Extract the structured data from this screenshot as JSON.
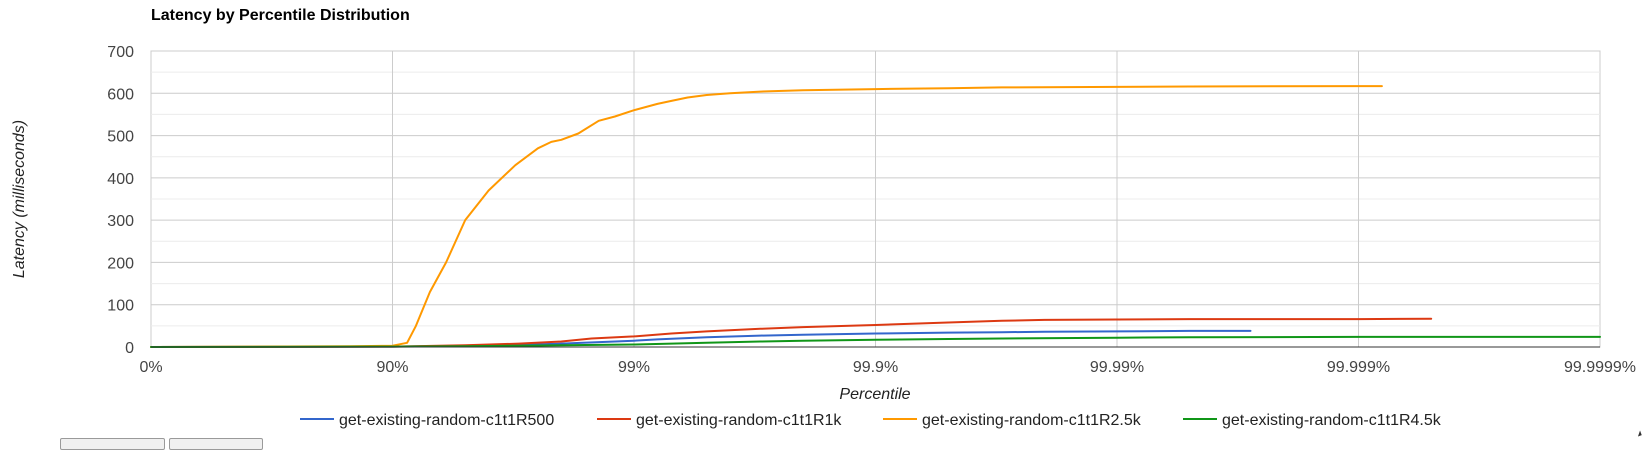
{
  "chart_data": {
    "type": "line",
    "title": "Latency by Percentile Distribution",
    "xlabel": "Percentile",
    "ylabel": "Latency (milliseconds)",
    "x_scale": "log-inverse-percentile",
    "x_ticks": [
      "0%",
      "90%",
      "99%",
      "99.9%",
      "99.99%",
      "99.999%",
      "99.9999%"
    ],
    "y_ticks": [
      "0",
      "100",
      "200",
      "300",
      "400",
      "500",
      "600",
      "700"
    ],
    "ylim": [
      0,
      700
    ],
    "grid": true,
    "legend_position": "bottom",
    "series": [
      {
        "name": "get-existing-random-c1t1R500",
        "color": "#3366cc",
        "points": [
          [
            "0",
            0
          ],
          [
            "90",
            1
          ],
          [
            "95",
            3
          ],
          [
            "97",
            5
          ],
          [
            "98",
            8
          ],
          [
            "99",
            15
          ],
          [
            "99.2",
            18
          ],
          [
            "99.5",
            23
          ],
          [
            "99.7",
            27
          ],
          [
            "99.8",
            29
          ],
          [
            "99.9",
            32
          ],
          [
            "99.95",
            34
          ],
          [
            "99.97",
            35
          ],
          [
            "99.98",
            36
          ],
          [
            "99.99",
            37
          ],
          [
            "99.995",
            38
          ],
          [
            "99.9972",
            38
          ]
        ]
      },
      {
        "name": "get-existing-random-c1t1R1k",
        "color": "#dc3912",
        "points": [
          [
            "0",
            0
          ],
          [
            "90",
            1
          ],
          [
            "95",
            4
          ],
          [
            "97",
            8
          ],
          [
            "98",
            13
          ],
          [
            "98.5",
            20
          ],
          [
            "99",
            25
          ],
          [
            "99.3",
            32
          ],
          [
            "99.5",
            37
          ],
          [
            "99.7",
            43
          ],
          [
            "99.8",
            47
          ],
          [
            "99.9",
            52
          ],
          [
            "99.95",
            58
          ],
          [
            "99.97",
            62
          ],
          [
            "99.98",
            64
          ],
          [
            "99.99",
            65
          ],
          [
            "99.995",
            66
          ],
          [
            "99.999",
            66
          ],
          [
            "99.9995",
            67
          ]
        ]
      },
      {
        "name": "get-existing-random-c1t1R2.5k",
        "color": "#ff9900",
        "points": [
          [
            "0",
            0
          ],
          [
            "85",
            2
          ],
          [
            "90",
            3
          ],
          [
            "91.3",
            10
          ],
          [
            "92",
            50
          ],
          [
            "93",
            130
          ],
          [
            "94",
            200
          ],
          [
            "95",
            300
          ],
          [
            "96",
            370
          ],
          [
            "96.9",
            430
          ],
          [
            "97.5",
            470
          ],
          [
            "97.8",
            485
          ],
          [
            "98",
            490
          ],
          [
            "98.3",
            505
          ],
          [
            "98.6",
            535
          ],
          [
            "98.8",
            545
          ],
          [
            "99",
            560
          ],
          [
            "99.2",
            575
          ],
          [
            "99.3",
            582
          ],
          [
            "99.4",
            590
          ],
          [
            "99.5",
            596
          ],
          [
            "99.6",
            600
          ],
          [
            "99.7",
            604
          ],
          [
            "99.8",
            607
          ],
          [
            "99.9",
            610
          ],
          [
            "99.95",
            612
          ],
          [
            "99.97",
            614
          ],
          [
            "99.99",
            615
          ],
          [
            "99.995",
            616
          ],
          [
            "99.999",
            617
          ],
          [
            "99.9992",
            617
          ]
        ]
      },
      {
        "name": "get-existing-random-c1t1R4.5k",
        "color": "#109618",
        "points": [
          [
            "0",
            0
          ],
          [
            "90",
            1
          ],
          [
            "95",
            2
          ],
          [
            "97",
            3
          ],
          [
            "98",
            4
          ],
          [
            "99",
            6
          ],
          [
            "99.3",
            8
          ],
          [
            "99.5",
            10
          ],
          [
            "99.7",
            13
          ],
          [
            "99.8",
            15
          ],
          [
            "99.9",
            17
          ],
          [
            "99.95",
            19
          ],
          [
            "99.97",
            20
          ],
          [
            "99.99",
            22
          ],
          [
            "99.995",
            23
          ],
          [
            "99.999",
            24
          ],
          [
            "99.9999",
            24
          ],
          [
            "99.99996",
            24
          ]
        ]
      }
    ]
  }
}
